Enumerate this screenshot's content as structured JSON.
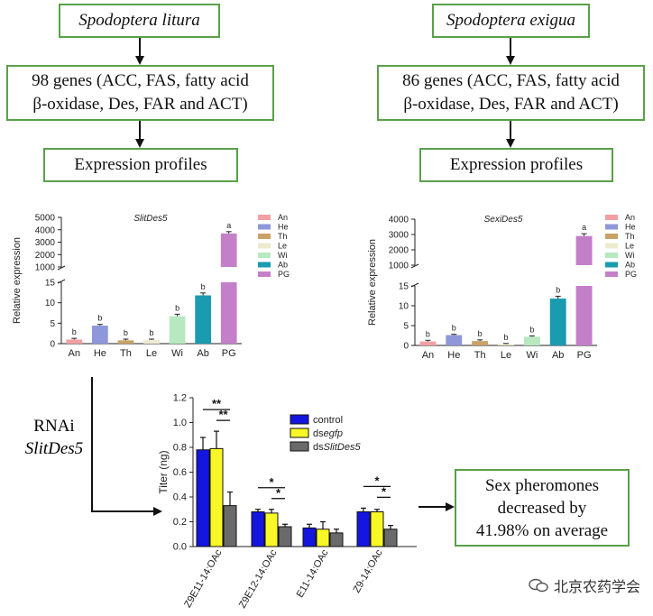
{
  "left_flow": {
    "species": "Spodoptera litura",
    "genes_line1": "98 genes (ACC, FAS, fatty acid",
    "genes_line2": "β-oxidase, Des, FAR and ACT)",
    "profiles": "Expression profiles"
  },
  "right_flow": {
    "species": "Spodoptera exigua",
    "genes_line1": "86 genes (ACC, FAS, fatty acid",
    "genes_line2": "β-oxidase, Des, FAR and ACT)",
    "profiles": "Expression profiles"
  },
  "rnai": {
    "label": "RNAi",
    "gene": "SlitDes5"
  },
  "outcome": {
    "line1": "Sex pheromones",
    "line2": "decreased by",
    "line3": "41.98% on average"
  },
  "watermark": {
    "text": "北京农药学会"
  },
  "colors": {
    "box_border": "#5aa04a"
  },
  "chart_data": [
    {
      "type": "bar",
      "title": "SlitDes5",
      "ylabel": "Relative expression",
      "categories": [
        "An",
        "He",
        "Th",
        "Le",
        "Wi",
        "Ab",
        "PG"
      ],
      "values": [
        1.0,
        4.4,
        0.8,
        0.9,
        6.7,
        11.8,
        3700
      ],
      "errors": [
        0.3,
        0.3,
        0.3,
        0.2,
        0.5,
        0.6,
        150
      ],
      "letters": [
        "b",
        "b",
        "b",
        "b",
        "b",
        "b",
        "a"
      ],
      "colors": [
        "#f3a0a3",
        "#8e97d9",
        "#c9a266",
        "#ecebd0",
        "#b8e8c0",
        "#1a9bb0",
        "#c47fc9"
      ],
      "legend": [
        "An",
        "He",
        "Th",
        "Le",
        "Wi",
        "Ab",
        "PG"
      ],
      "ylim_lower": [
        0,
        15
      ],
      "ylim_upper": [
        1000,
        5000
      ],
      "yticks_lower": [
        "0",
        "5",
        "10",
        "15"
      ],
      "yticks_upper": [
        "1000",
        "2000",
        "3000",
        "4000",
        "5000"
      ],
      "break": true
    },
    {
      "type": "bar",
      "title": "SexiDes5",
      "ylabel": "Relative expression",
      "categories": [
        "An",
        "He",
        "Th",
        "Le",
        "Wi",
        "Ab",
        "PG"
      ],
      "values": [
        1.0,
        2.6,
        1.1,
        0.4,
        2.2,
        11.8,
        2900
      ],
      "errors": [
        0.3,
        0.2,
        0.3,
        0.1,
        0.2,
        0.6,
        150
      ],
      "letters": [
        "b",
        "b",
        "b",
        "b",
        "b",
        "b",
        "a"
      ],
      "colors": [
        "#f3a0a3",
        "#8e97d9",
        "#c9a266",
        "#ecebd0",
        "#b8e8c0",
        "#1a9bb0",
        "#c47fc9"
      ],
      "legend": [
        "An",
        "He",
        "Th",
        "Le",
        "Wi",
        "Ab",
        "PG"
      ],
      "ylim_lower": [
        0,
        15
      ],
      "ylim_upper": [
        1000,
        4000
      ],
      "yticks_lower": [
        "0",
        "5",
        "10",
        "15"
      ],
      "yticks_upper": [
        "1000",
        "2000",
        "3000",
        "4000"
      ],
      "break": true
    },
    {
      "type": "bar",
      "title": "",
      "ylabel": "Titer (ng)",
      "categories": [
        "Z9E11-14:OAc",
        "Z9E12-14:OAc",
        "E11-14:OAc",
        "Z9-14:OAc"
      ],
      "series": [
        {
          "name": "control",
          "name_prefix": "control",
          "name_italic": "",
          "color": "#1515e0",
          "values": [
            0.78,
            0.28,
            0.15,
            0.28
          ],
          "errors": [
            0.1,
            0.02,
            0.03,
            0.03
          ]
        },
        {
          "name": "dsegfp",
          "name_prefix": "ds",
          "name_italic": "egfp",
          "color": "#f8f827",
          "values": [
            0.79,
            0.27,
            0.14,
            0.28
          ],
          "errors": [
            0.14,
            0.03,
            0.06,
            0.02
          ]
        },
        {
          "name": "dsSlitDes5",
          "name_prefix": "ds",
          "name_italic": "SlitDes5",
          "color": "#6a6a6a",
          "values": [
            0.33,
            0.16,
            0.11,
            0.14
          ],
          "errors": [
            0.11,
            0.02,
            0.03,
            0.03
          ]
        }
      ],
      "ylim": [
        0,
        1.2
      ],
      "yticks": [
        "0.0",
        "0.2",
        "0.4",
        "0.6",
        "0.8",
        "1.0",
        "1.2"
      ],
      "significance": [
        {
          "group": 0,
          "pair": "control-ds",
          "label": "**"
        },
        {
          "group": 0,
          "pair": "egfp-ds",
          "label": "**"
        },
        {
          "group": 1,
          "pair": "control-ds",
          "label": "*"
        },
        {
          "group": 1,
          "pair": "egfp-ds",
          "label": "*"
        },
        {
          "group": 3,
          "pair": "control-ds",
          "label": "*"
        },
        {
          "group": 3,
          "pair": "egfp-ds",
          "label": "*"
        }
      ]
    }
  ]
}
